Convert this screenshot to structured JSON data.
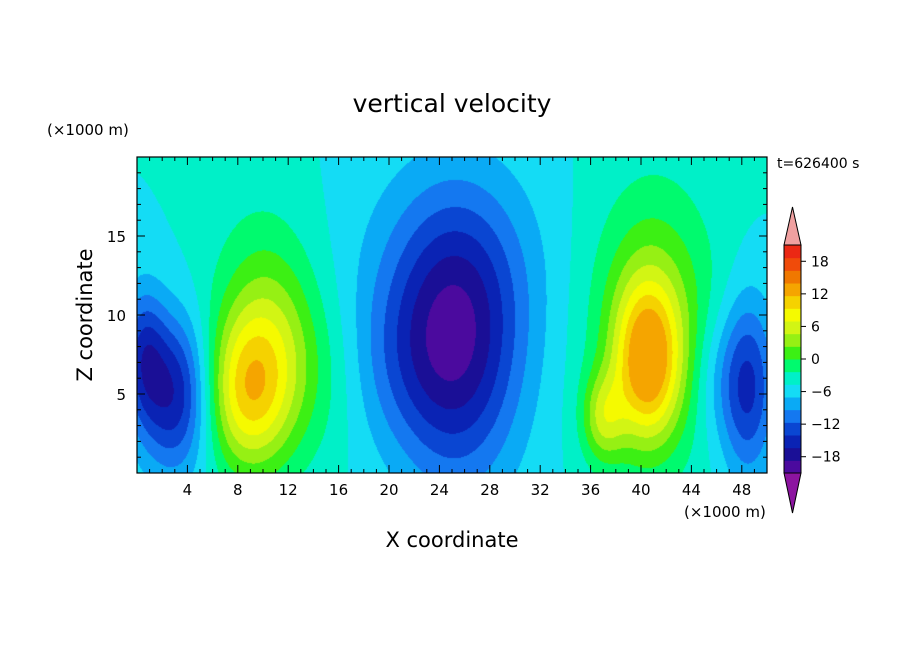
{
  "chart_data": {
    "type": "heatmap",
    "title": "vertical velocity",
    "xlabel": "X coordinate",
    "ylabel": "Z coordinate",
    "x_unit": "(×1000 m)",
    "y_unit": "(×1000 m)",
    "time_label": "t=626400 s",
    "xlim": [
      0,
      50
    ],
    "ylim": [
      0,
      20
    ],
    "x_ticks": [
      4,
      8,
      12,
      16,
      20,
      24,
      28,
      32,
      36,
      40,
      44,
      48
    ],
    "y_ticks": [
      5,
      10,
      15
    ],
    "colorbar": {
      "tick_values": [
        18,
        12,
        6,
        0,
        -6,
        -12,
        -18
      ],
      "levels": [
        -21,
        -18,
        -15,
        -12,
        -9,
        -6,
        -3,
        0,
        3,
        6,
        9,
        12,
        15,
        18,
        21
      ],
      "colors": [
        "#4b0a9e",
        "#1a0f96",
        "#0a23b4",
        "#0a46d2",
        "#1478f0",
        "#0aaaf5",
        "#14dcf5",
        "#00f0c8",
        "#00fa6e",
        "#3cf014",
        "#96f014",
        "#d2f514",
        "#f5fa00",
        "#f5d200",
        "#f5a500",
        "#f07800",
        "#f04b0a",
        "#eb2814"
      ],
      "under_color": "#8c14a0",
      "over_color": "#f0a0a0"
    },
    "field_features": [
      {
        "x": 3.0,
        "z": 5.0,
        "w": -15,
        "sx": 2.0,
        "sz": 3.5
      },
      {
        "x": 0.5,
        "z": 7.5,
        "w": -10,
        "sx": 1.2,
        "sz": 3.0
      },
      {
        "x": 8.5,
        "z": 5.0,
        "w": 14,
        "sx": 2.3,
        "sz": 3.5
      },
      {
        "x": 11.0,
        "z": 7.0,
        "w": 9,
        "sx": 2.5,
        "sz": 4.5
      },
      {
        "x": 9.5,
        "z": 11.0,
        "w": 4,
        "sx": 3.0,
        "sz": 5.0
      },
      {
        "x": 25.5,
        "z": 7.5,
        "w": -15,
        "sx": 3.5,
        "sz": 6.0
      },
      {
        "x": 25.0,
        "z": 13.0,
        "w": -6,
        "sx": 5.0,
        "sz": 5.0
      },
      {
        "x": 21.0,
        "z": 7.0,
        "w": -4,
        "sx": 3.0,
        "sz": 4.0
      },
      {
        "x": 40.5,
        "z": 7.0,
        "w": 18,
        "sx": 1.8,
        "sz": 3.5
      },
      {
        "x": 41.0,
        "z": 9.5,
        "w": 10,
        "sx": 3.5,
        "sz": 6.0
      },
      {
        "x": 37.0,
        "z": 3.5,
        "w": 10,
        "sx": 1.2,
        "sz": 2.0
      },
      {
        "x": 48.5,
        "z": 5.5,
        "w": -13,
        "sx": 1.5,
        "sz": 4.0
      },
      {
        "x": 46.0,
        "z": 6.0,
        "w": -4,
        "sx": 1.5,
        "sz": 3.0
      },
      {
        "x": 15.0,
        "z": 6.0,
        "w": 2,
        "sx": 2.0,
        "sz": 4.0
      }
    ]
  }
}
